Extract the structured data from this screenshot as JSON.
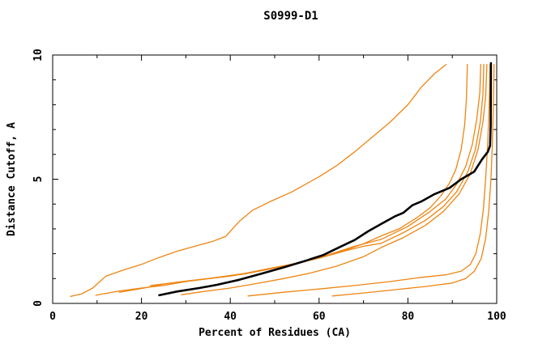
{
  "figure": {
    "background": "#ffffff",
    "axis_color": "#000000"
  },
  "chart_data": {
    "type": "line",
    "title": "S0999-D1",
    "xlabel": "Percent of Residues (CA)",
    "ylabel": "Distance Cutoff, A",
    "xlim": [
      0,
      100
    ],
    "ylim": [
      0,
      10
    ],
    "x_major_ticks": [
      0,
      20,
      40,
      60,
      80,
      100
    ],
    "x_minor_ticks": [
      10,
      30,
      50,
      70,
      90
    ],
    "y_major_ticks": [
      0,
      5,
      10
    ],
    "y_minor_ticks": [
      1,
      2,
      3,
      4,
      6,
      7,
      8,
      9
    ],
    "grid": false,
    "legend": "none",
    "colors": {
      "orange": "#ee8512",
      "black": "#000000"
    },
    "series": [
      {
        "id": "orange-1",
        "color": "#ee8512",
        "width": 1.3,
        "points": [
          [
            4,
            0.28
          ],
          [
            6.5,
            0.38
          ],
          [
            9,
            0.62
          ],
          [
            12,
            1.1
          ],
          [
            16,
            1.35
          ],
          [
            20,
            1.57
          ],
          [
            24,
            1.85
          ],
          [
            28,
            2.1
          ],
          [
            32,
            2.3
          ],
          [
            36,
            2.5
          ],
          [
            39,
            2.7
          ],
          [
            42,
            3.3
          ],
          [
            45,
            3.75
          ],
          [
            49,
            4.1
          ],
          [
            54,
            4.5
          ],
          [
            60,
            5.1
          ],
          [
            64,
            5.55
          ],
          [
            68,
            6.1
          ],
          [
            72,
            6.7
          ],
          [
            76,
            7.3
          ],
          [
            80,
            8.0
          ],
          [
            83,
            8.7
          ],
          [
            86,
            9.25
          ],
          [
            88.6,
            9.62
          ]
        ]
      },
      {
        "id": "orange-2",
        "color": "#ee8512",
        "width": 1.3,
        "points": [
          [
            9.7,
            0.33
          ],
          [
            15,
            0.5
          ],
          [
            20,
            0.62
          ],
          [
            25,
            0.72
          ],
          [
            30,
            0.88
          ],
          [
            37,
            1.05
          ],
          [
            43,
            1.2
          ],
          [
            48,
            1.38
          ],
          [
            53,
            1.55
          ],
          [
            59,
            1.78
          ],
          [
            66,
            2.15
          ],
          [
            70,
            2.4
          ],
          [
            74,
            2.72
          ],
          [
            78,
            3.0
          ],
          [
            82,
            3.45
          ],
          [
            85,
            3.85
          ],
          [
            87.5,
            4.35
          ],
          [
            89.4,
            4.85
          ],
          [
            90.8,
            5.4
          ],
          [
            92,
            6.2
          ],
          [
            92.8,
            7.2
          ],
          [
            93.2,
            8.3
          ],
          [
            93.4,
            9.62
          ]
        ]
      },
      {
        "id": "orange-3",
        "color": "#ee8512",
        "width": 1.3,
        "points": [
          [
            15,
            0.45
          ],
          [
            20,
            0.6
          ],
          [
            25,
            0.78
          ],
          [
            30,
            0.9
          ],
          [
            36,
            1.02
          ],
          [
            43,
            1.18
          ],
          [
            50,
            1.42
          ],
          [
            56,
            1.65
          ],
          [
            62,
            1.95
          ],
          [
            68,
            2.3
          ],
          [
            74,
            2.58
          ],
          [
            80,
            3.1
          ],
          [
            85,
            3.7
          ],
          [
            88.5,
            4.2
          ],
          [
            91,
            4.8
          ],
          [
            93,
            5.5
          ],
          [
            94.5,
            6.4
          ],
          [
            95.5,
            7.4
          ],
          [
            96.2,
            8.5
          ],
          [
            96.4,
            9.62
          ]
        ]
      },
      {
        "id": "orange-4",
        "color": "#ee8512",
        "width": 1.3,
        "points": [
          [
            22,
            0.72
          ],
          [
            27,
            0.83
          ],
          [
            33,
            0.95
          ],
          [
            40,
            1.1
          ],
          [
            47,
            1.32
          ],
          [
            54,
            1.58
          ],
          [
            60,
            1.82
          ],
          [
            66,
            2.12
          ],
          [
            70,
            2.3
          ],
          [
            74,
            2.42
          ],
          [
            79,
            2.85
          ],
          [
            84,
            3.35
          ],
          [
            88,
            3.9
          ],
          [
            91,
            4.5
          ],
          [
            93.5,
            5.3
          ],
          [
            95.2,
            6.2
          ],
          [
            96.3,
            7.3
          ],
          [
            96.9,
            8.4
          ],
          [
            97.1,
            9.62
          ]
        ]
      },
      {
        "id": "orange-5",
        "color": "#ee8512",
        "width": 1.3,
        "points": [
          [
            29,
            0.35
          ],
          [
            34,
            0.48
          ],
          [
            40,
            0.62
          ],
          [
            46,
            0.8
          ],
          [
            52,
            1.0
          ],
          [
            58,
            1.22
          ],
          [
            64,
            1.5
          ],
          [
            70,
            1.88
          ],
          [
            74,
            2.25
          ],
          [
            79,
            2.65
          ],
          [
            84,
            3.15
          ],
          [
            88,
            3.7
          ],
          [
            91.5,
            4.4
          ],
          [
            94,
            5.2
          ],
          [
            95.8,
            6.2
          ],
          [
            96.9,
            7.3
          ],
          [
            97.5,
            8.3
          ],
          [
            97.8,
            9.62
          ]
        ]
      },
      {
        "id": "orange-6",
        "color": "#ee8512",
        "width": 1.3,
        "points": [
          [
            44,
            0.3
          ],
          [
            52,
            0.45
          ],
          [
            60,
            0.58
          ],
          [
            68,
            0.72
          ],
          [
            76,
            0.88
          ],
          [
            83,
            1.05
          ],
          [
            88.5,
            1.15
          ],
          [
            92,
            1.3
          ],
          [
            94,
            1.55
          ],
          [
            95.3,
            2.0
          ],
          [
            96.3,
            2.8
          ],
          [
            97,
            3.8
          ],
          [
            97.5,
            5.0
          ],
          [
            97.9,
            6.2
          ],
          [
            98.2,
            7.4
          ],
          [
            98.4,
            8.6
          ],
          [
            98.5,
            9.62
          ]
        ]
      },
      {
        "id": "orange-7",
        "color": "#ee8512",
        "width": 1.3,
        "points": [
          [
            63,
            0.3
          ],
          [
            70,
            0.42
          ],
          [
            77,
            0.55
          ],
          [
            84,
            0.68
          ],
          [
            90,
            0.82
          ],
          [
            93,
            1.0
          ],
          [
            95,
            1.3
          ],
          [
            96.5,
            1.8
          ],
          [
            97.5,
            2.6
          ],
          [
            98.2,
            3.7
          ],
          [
            98.7,
            5.0
          ],
          [
            99.0,
            6.3
          ],
          [
            99.2,
            7.6
          ],
          [
            99.35,
            8.8
          ],
          [
            99.4,
            9.62
          ]
        ]
      },
      {
        "id": "black-bold",
        "color": "#000000",
        "width": 2.6,
        "points": [
          [
            24,
            0.33
          ],
          [
            28,
            0.48
          ],
          [
            33,
            0.62
          ],
          [
            37,
            0.75
          ],
          [
            42,
            0.95
          ],
          [
            47,
            1.2
          ],
          [
            52,
            1.45
          ],
          [
            57,
            1.72
          ],
          [
            61,
            1.95
          ],
          [
            65,
            2.3
          ],
          [
            68,
            2.55
          ],
          [
            71,
            2.9
          ],
          [
            74,
            3.2
          ],
          [
            77,
            3.5
          ],
          [
            79,
            3.65
          ],
          [
            81,
            3.95
          ],
          [
            83,
            4.1
          ],
          [
            86,
            4.4
          ],
          [
            89.4,
            4.65
          ],
          [
            92,
            5.0
          ],
          [
            94.9,
            5.3
          ],
          [
            96.7,
            5.8
          ],
          [
            98,
            6.1
          ],
          [
            98.5,
            6.35
          ],
          [
            98.65,
            7.2
          ],
          [
            98.7,
            9.67
          ]
        ]
      }
    ]
  }
}
